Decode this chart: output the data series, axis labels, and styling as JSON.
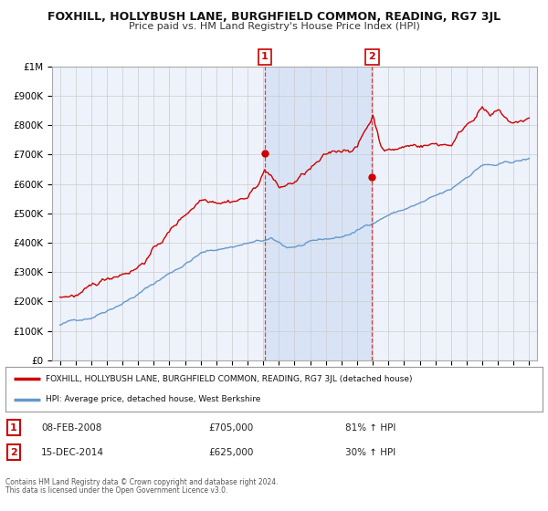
{
  "title": "FOXHILL, HOLLYBUSH LANE, BURGHFIELD COMMON, READING, RG7 3JL",
  "subtitle": "Price paid vs. HM Land Registry's House Price Index (HPI)",
  "ylim": [
    0,
    1000000
  ],
  "xlim_start": 1994.5,
  "xlim_end": 2025.5,
  "sale1_date": 2008.1,
  "sale1_value": 705000,
  "sale1_label": "1",
  "sale1_display": "08-FEB-2008",
  "sale1_price_str": "£705,000",
  "sale1_hpi_str": "81% ↑ HPI",
  "sale2_date": 2014.96,
  "sale2_value": 625000,
  "sale2_label": "2",
  "sale2_display": "15-DEC-2014",
  "sale2_price_str": "£625,000",
  "sale2_hpi_str": "30% ↑ HPI",
  "red_color": "#cc0000",
  "blue_color": "#6699cc",
  "bg_color": "#eef2fb",
  "shaded_region_color": "#d8e4f5",
  "grid_color": "#cccccc",
  "legend_label_red": "FOXHILL, HOLLYBUSH LANE, BURGHFIELD COMMON, READING, RG7 3JL (detached house)",
  "legend_label_blue": "HPI: Average price, detached house, West Berkshire",
  "footer1": "Contains HM Land Registry data © Crown copyright and database right 2024.",
  "footer2": "This data is licensed under the Open Government Licence v3.0."
}
